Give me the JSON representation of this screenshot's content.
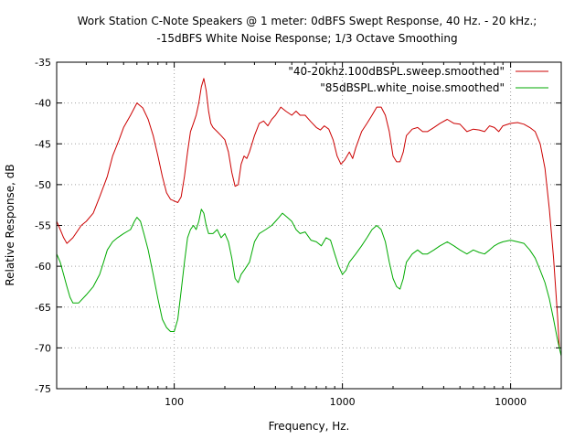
{
  "chart_data": {
    "type": "line",
    "title_lines": [
      "Work Station C-Note Speakers @ 1 meter: 0dBFS Swept Response, 40 Hz. - 20 kHz.;",
      "-15dBFS White Noise Response; 1/3 Octave Smoothing"
    ],
    "xlabel": "Frequency, Hz.",
    "ylabel": "Relative Response, dB",
    "x_scale": "log",
    "xlim": [
      20,
      20000
    ],
    "ylim": [
      -75,
      -35
    ],
    "x_ticks": [
      100,
      1000,
      10000
    ],
    "x_tick_labels": [
      "100",
      "1000",
      "10000"
    ],
    "y_ticks": [
      -35,
      -40,
      -45,
      -50,
      -55,
      -60,
      -65,
      -70,
      -75
    ],
    "y_tick_labels": [
      "-35",
      "-40",
      "-45",
      "-50",
      "-55",
      "-60",
      "-65",
      "-70",
      "-75"
    ],
    "grid": true,
    "legend_position": "top-right",
    "series": [
      {
        "name": "\"40-20khz.100dBSPL.sweep.smoothed\"",
        "color": "#cc0000",
        "points": [
          [
            20,
            -54.5
          ],
          [
            21,
            -55.5
          ],
          [
            22,
            -56.5
          ],
          [
            23,
            -57.2
          ],
          [
            25,
            -56.5
          ],
          [
            28,
            -55.0
          ],
          [
            30,
            -54.5
          ],
          [
            33,
            -53.5
          ],
          [
            36,
            -51.5
          ],
          [
            40,
            -49.0
          ],
          [
            43,
            -46.5
          ],
          [
            47,
            -44.5
          ],
          [
            50,
            -43.0
          ],
          [
            55,
            -41.5
          ],
          [
            60,
            -40.0
          ],
          [
            65,
            -40.6
          ],
          [
            70,
            -42.0
          ],
          [
            75,
            -44.0
          ],
          [
            80,
            -46.5
          ],
          [
            85,
            -49.0
          ],
          [
            90,
            -51.0
          ],
          [
            95,
            -51.8
          ],
          [
            100,
            -52.0
          ],
          [
            105,
            -52.2
          ],
          [
            110,
            -51.5
          ],
          [
            115,
            -49.0
          ],
          [
            120,
            -46.0
          ],
          [
            125,
            -43.5
          ],
          [
            130,
            -42.5
          ],
          [
            135,
            -41.5
          ],
          [
            140,
            -40.0
          ],
          [
            145,
            -38.0
          ],
          [
            150,
            -37.0
          ],
          [
            155,
            -38.5
          ],
          [
            160,
            -41.0
          ],
          [
            165,
            -42.5
          ],
          [
            170,
            -43.0
          ],
          [
            180,
            -43.5
          ],
          [
            190,
            -44.0
          ],
          [
            200,
            -44.5
          ],
          [
            210,
            -46.0
          ],
          [
            220,
            -48.5
          ],
          [
            230,
            -50.2
          ],
          [
            240,
            -50.0
          ],
          [
            250,
            -47.5
          ],
          [
            260,
            -46.5
          ],
          [
            270,
            -46.8
          ],
          [
            280,
            -46.0
          ],
          [
            300,
            -44.0
          ],
          [
            320,
            -42.5
          ],
          [
            340,
            -42.2
          ],
          [
            360,
            -42.8
          ],
          [
            380,
            -42.0
          ],
          [
            400,
            -41.5
          ],
          [
            430,
            -40.5
          ],
          [
            460,
            -41.0
          ],
          [
            500,
            -41.5
          ],
          [
            530,
            -41.0
          ],
          [
            560,
            -41.5
          ],
          [
            600,
            -41.5
          ],
          [
            650,
            -42.3
          ],
          [
            700,
            -43.0
          ],
          [
            740,
            -43.3
          ],
          [
            780,
            -42.8
          ],
          [
            830,
            -43.2
          ],
          [
            880,
            -44.5
          ],
          [
            930,
            -46.5
          ],
          [
            980,
            -47.5
          ],
          [
            1030,
            -47.0
          ],
          [
            1100,
            -46.0
          ],
          [
            1150,
            -46.8
          ],
          [
            1200,
            -45.5
          ],
          [
            1300,
            -43.5
          ],
          [
            1400,
            -42.5
          ],
          [
            1500,
            -41.5
          ],
          [
            1600,
            -40.5
          ],
          [
            1700,
            -40.5
          ],
          [
            1800,
            -41.5
          ],
          [
            1900,
            -43.5
          ],
          [
            2000,
            -46.5
          ],
          [
            2100,
            -47.2
          ],
          [
            2200,
            -47.2
          ],
          [
            2300,
            -46.0
          ],
          [
            2400,
            -44.0
          ],
          [
            2600,
            -43.2
          ],
          [
            2800,
            -43.0
          ],
          [
            3000,
            -43.5
          ],
          [
            3200,
            -43.5
          ],
          [
            3500,
            -43.0
          ],
          [
            3800,
            -42.5
          ],
          [
            4200,
            -42.0
          ],
          [
            4600,
            -42.5
          ],
          [
            5000,
            -42.6
          ],
          [
            5500,
            -43.5
          ],
          [
            6000,
            -43.2
          ],
          [
            6500,
            -43.3
          ],
          [
            7000,
            -43.5
          ],
          [
            7500,
            -42.8
          ],
          [
            8000,
            -43.0
          ],
          [
            8500,
            -43.5
          ],
          [
            9000,
            -42.8
          ],
          [
            10000,
            -42.5
          ],
          [
            11000,
            -42.4
          ],
          [
            12000,
            -42.6
          ],
          [
            13000,
            -43.0
          ],
          [
            14000,
            -43.5
          ],
          [
            15000,
            -45.0
          ],
          [
            16000,
            -48.0
          ],
          [
            17000,
            -53.0
          ],
          [
            18000,
            -59.0
          ],
          [
            19000,
            -66.0
          ],
          [
            19500,
            -70.0
          ]
        ]
      },
      {
        "name": "\"85dBSPL.white_noise.smoothed\"",
        "color": "#00aa00",
        "points": [
          [
            20,
            -58.5
          ],
          [
            21,
            -59.5
          ],
          [
            22,
            -61.0
          ],
          [
            23,
            -62.5
          ],
          [
            24,
            -63.8
          ],
          [
            25,
            -64.5
          ],
          [
            27,
            -64.5
          ],
          [
            30,
            -63.5
          ],
          [
            33,
            -62.5
          ],
          [
            36,
            -61.0
          ],
          [
            38,
            -59.5
          ],
          [
            40,
            -58.0
          ],
          [
            43,
            -57.0
          ],
          [
            46,
            -56.5
          ],
          [
            50,
            -56.0
          ],
          [
            55,
            -55.5
          ],
          [
            58,
            -54.5
          ],
          [
            60,
            -54.0
          ],
          [
            63,
            -54.5
          ],
          [
            66,
            -56.0
          ],
          [
            70,
            -58.0
          ],
          [
            75,
            -61.0
          ],
          [
            80,
            -64.0
          ],
          [
            85,
            -66.5
          ],
          [
            90,
            -67.5
          ],
          [
            95,
            -68.0
          ],
          [
            100,
            -68.0
          ],
          [
            105,
            -66.5
          ],
          [
            110,
            -63.0
          ],
          [
            115,
            -59.5
          ],
          [
            120,
            -56.5
          ],
          [
            125,
            -55.5
          ],
          [
            130,
            -55.0
          ],
          [
            135,
            -55.5
          ],
          [
            140,
            -54.5
          ],
          [
            145,
            -53.0
          ],
          [
            150,
            -53.5
          ],
          [
            155,
            -55.0
          ],
          [
            160,
            -56.0
          ],
          [
            170,
            -56.0
          ],
          [
            180,
            -55.5
          ],
          [
            190,
            -56.5
          ],
          [
            200,
            -56.0
          ],
          [
            210,
            -57.0
          ],
          [
            220,
            -59.0
          ],
          [
            230,
            -61.5
          ],
          [
            240,
            -62.0
          ],
          [
            250,
            -61.0
          ],
          [
            260,
            -60.5
          ],
          [
            280,
            -59.5
          ],
          [
            300,
            -57.0
          ],
          [
            320,
            -56.0
          ],
          [
            350,
            -55.5
          ],
          [
            380,
            -55.0
          ],
          [
            400,
            -54.5
          ],
          [
            420,
            -54.0
          ],
          [
            440,
            -53.5
          ],
          [
            470,
            -54.0
          ],
          [
            500,
            -54.5
          ],
          [
            530,
            -55.5
          ],
          [
            560,
            -56.0
          ],
          [
            600,
            -55.8
          ],
          [
            650,
            -56.8
          ],
          [
            700,
            -57.0
          ],
          [
            750,
            -57.5
          ],
          [
            800,
            -56.5
          ],
          [
            850,
            -56.8
          ],
          [
            900,
            -58.5
          ],
          [
            950,
            -60.0
          ],
          [
            1000,
            -61.0
          ],
          [
            1050,
            -60.5
          ],
          [
            1100,
            -59.5
          ],
          [
            1200,
            -58.5
          ],
          [
            1300,
            -57.5
          ],
          [
            1400,
            -56.5
          ],
          [
            1500,
            -55.5
          ],
          [
            1600,
            -55.0
          ],
          [
            1700,
            -55.5
          ],
          [
            1800,
            -57.0
          ],
          [
            1900,
            -59.5
          ],
          [
            2000,
            -61.5
          ],
          [
            2100,
            -62.5
          ],
          [
            2200,
            -62.8
          ],
          [
            2300,
            -61.5
          ],
          [
            2400,
            -59.5
          ],
          [
            2600,
            -58.5
          ],
          [
            2800,
            -58.0
          ],
          [
            3000,
            -58.5
          ],
          [
            3200,
            -58.5
          ],
          [
            3500,
            -58.0
          ],
          [
            3800,
            -57.5
          ],
          [
            4200,
            -57.0
          ],
          [
            4600,
            -57.5
          ],
          [
            5000,
            -58.0
          ],
          [
            5500,
            -58.5
          ],
          [
            6000,
            -58.0
          ],
          [
            6500,
            -58.3
          ],
          [
            7000,
            -58.5
          ],
          [
            7500,
            -58.0
          ],
          [
            8000,
            -57.5
          ],
          [
            8500,
            -57.2
          ],
          [
            9000,
            -57.0
          ],
          [
            10000,
            -56.8
          ],
          [
            11000,
            -57.0
          ],
          [
            12000,
            -57.2
          ],
          [
            13000,
            -58.0
          ],
          [
            14000,
            -59.0
          ],
          [
            15000,
            -60.5
          ],
          [
            16000,
            -62.0
          ],
          [
            17000,
            -64.0
          ],
          [
            18000,
            -66.5
          ],
          [
            19000,
            -69.0
          ],
          [
            20000,
            -71.0
          ]
        ]
      }
    ]
  }
}
